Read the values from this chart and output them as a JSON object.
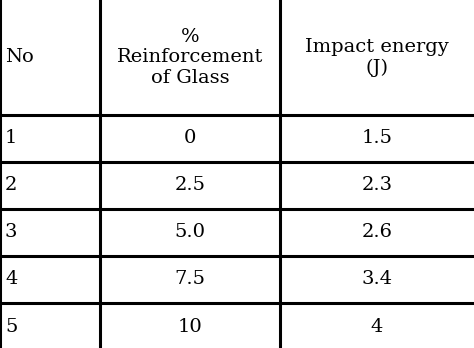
{
  "col_headers": [
    "No",
    "%\nReinforcement\nof Glass",
    "Impact energy\n(J)"
  ],
  "rows": [
    [
      "1",
      "0",
      "1.5"
    ],
    [
      "2",
      "2.5",
      "2.3"
    ],
    [
      "3",
      "5.0",
      "2.6"
    ],
    [
      "4",
      "7.5",
      "3.4"
    ],
    [
      "5",
      "10",
      "4"
    ]
  ],
  "background_color": "#ffffff",
  "text_color": "#000000",
  "line_color": "#000000",
  "font_size": 14,
  "header_font_size": 14,
  "fig_width": 4.74,
  "fig_height": 3.48,
  "dpi": 100
}
